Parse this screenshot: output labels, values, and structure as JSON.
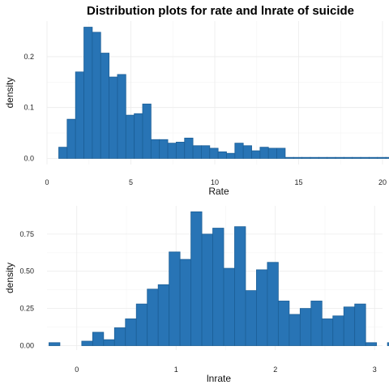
{
  "title": "Distribution plots for rate and lnrate of suicide",
  "colors": {
    "bar_fill": "#2874b5",
    "bar_edge": "#1c5f97",
    "grid": "#ebebeb"
  },
  "chart_data": [
    {
      "type": "bar",
      "xlabel": "Rate",
      "ylabel": "density",
      "xlim": [
        0,
        20
      ],
      "ylim": [
        -0.012,
        0.27
      ],
      "xticks": [
        0,
        5,
        10,
        15,
        20
      ],
      "yticks": [
        0.0,
        0.1,
        0.2
      ],
      "ytick_labels": [
        "0.0",
        "0.1",
        "0.2"
      ],
      "bin_start": 0.7,
      "bin_width": 0.5,
      "values": [
        0.022,
        0.077,
        0.17,
        0.258,
        0.248,
        0.207,
        0.16,
        0.165,
        0.085,
        0.088,
        0.107,
        0.037,
        0.037,
        0.03,
        0.032,
        0.04,
        0.025,
        0.025,
        0.02,
        0.013,
        0.01,
        0.03,
        0.025,
        0.015,
        0.022,
        0.02,
        0.02,
        0.002,
        0.002,
        0.002,
        0.002,
        0.002,
        0.002,
        0.002,
        0.002,
        0.002,
        0.002,
        0.002,
        0.002,
        0.002,
        0.002,
        0.002,
        0.002,
        0.002,
        0.002,
        0.002
      ],
      "grid": true
    },
    {
      "type": "bar",
      "xlabel": "lnrate",
      "ylabel": "density",
      "xlim": [
        -0.3,
        3.08
      ],
      "ylim": [
        -0.03,
        0.94
      ],
      "xticks": [
        0,
        1,
        2,
        3
      ],
      "yticks": [
        0.0,
        0.25,
        0.5,
        0.75
      ],
      "ytick_labels": [
        "0.00",
        "0.25",
        "0.50",
        "0.75"
      ],
      "bin_start": -0.28,
      "bin_width": 0.11,
      "values": [
        0.02,
        0.0,
        0.0,
        0.03,
        0.09,
        0.04,
        0.12,
        0.18,
        0.28,
        0.38,
        0.41,
        0.63,
        0.58,
        0.9,
        0.75,
        0.79,
        0.52,
        0.8,
        0.37,
        0.51,
        0.56,
        0.3,
        0.21,
        0.25,
        0.3,
        0.18,
        0.2,
        0.26,
        0.28,
        0.02,
        0.0,
        0.02
      ],
      "grid": true
    }
  ]
}
